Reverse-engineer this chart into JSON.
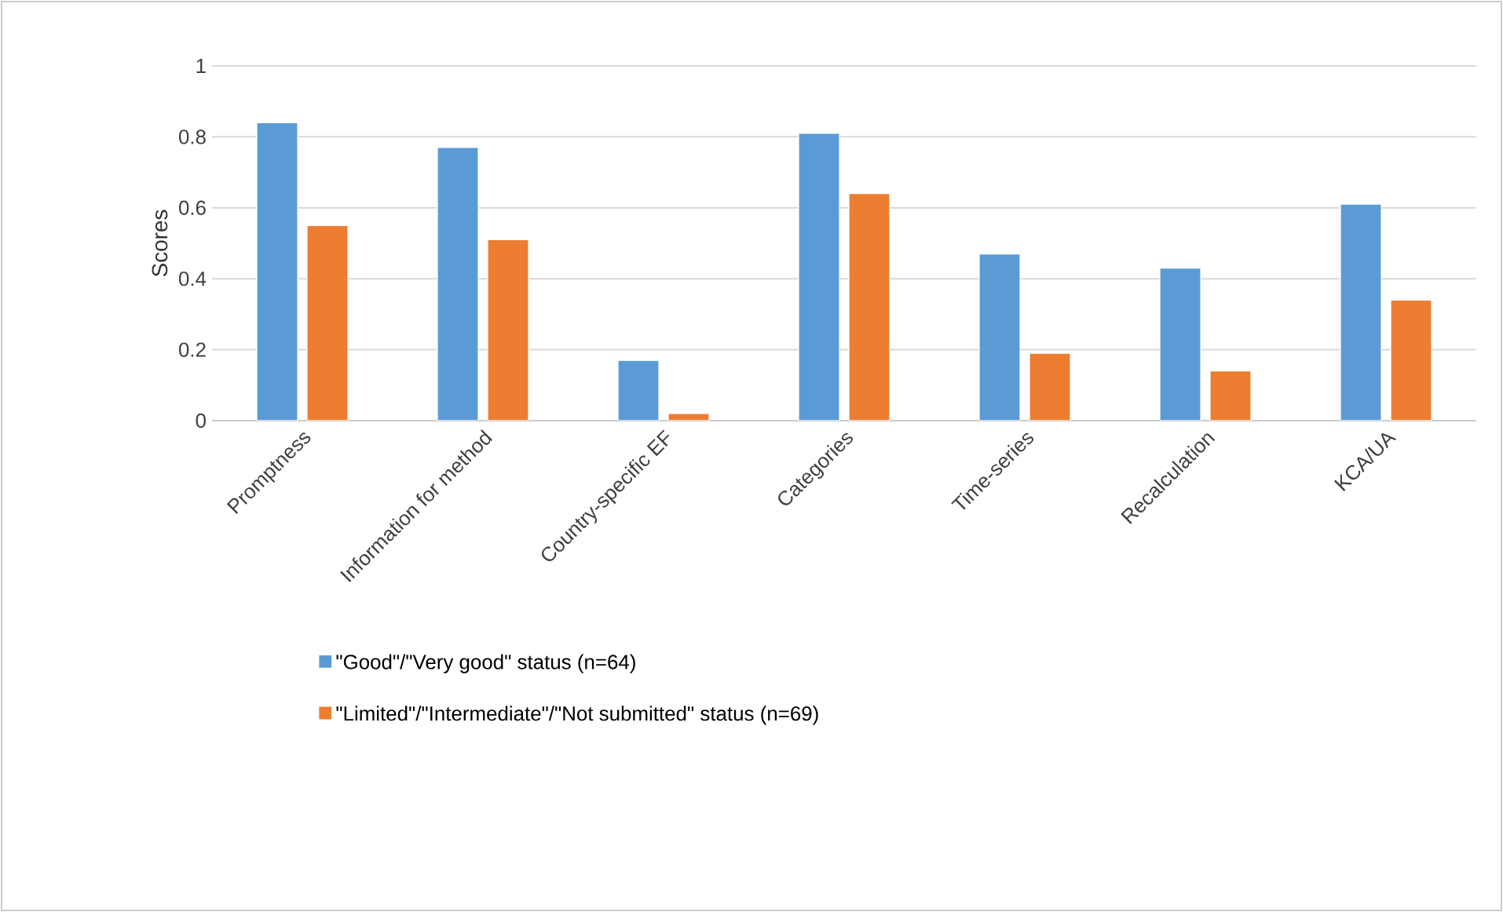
{
  "chart_data": {
    "type": "bar",
    "ylabel": "Scores",
    "categories": [
      "Promptness",
      "Information for method",
      "Country-specific EF",
      "Categories",
      "Time-series",
      "Recalculation",
      "KCA/UA"
    ],
    "series": [
      {
        "name": "\"Good\"/\"Very good\" status (n=64)",
        "color": "#5b9bd5",
        "values": [
          0.84,
          0.77,
          0.17,
          0.81,
          0.47,
          0.43,
          0.61
        ]
      },
      {
        "name": "\"Limited\"/\"Intermediate\"/\"Not submitted\" status (n=69)",
        "color": "#ed7d31",
        "values": [
          0.55,
          0.51,
          0.02,
          0.64,
          0.19,
          0.14,
          0.34
        ]
      }
    ],
    "ylim": [
      0,
      1
    ],
    "yticks": [
      0,
      0.2,
      0.4,
      0.6,
      0.8,
      1
    ],
    "grid": "y",
    "legend": "bottom"
  }
}
